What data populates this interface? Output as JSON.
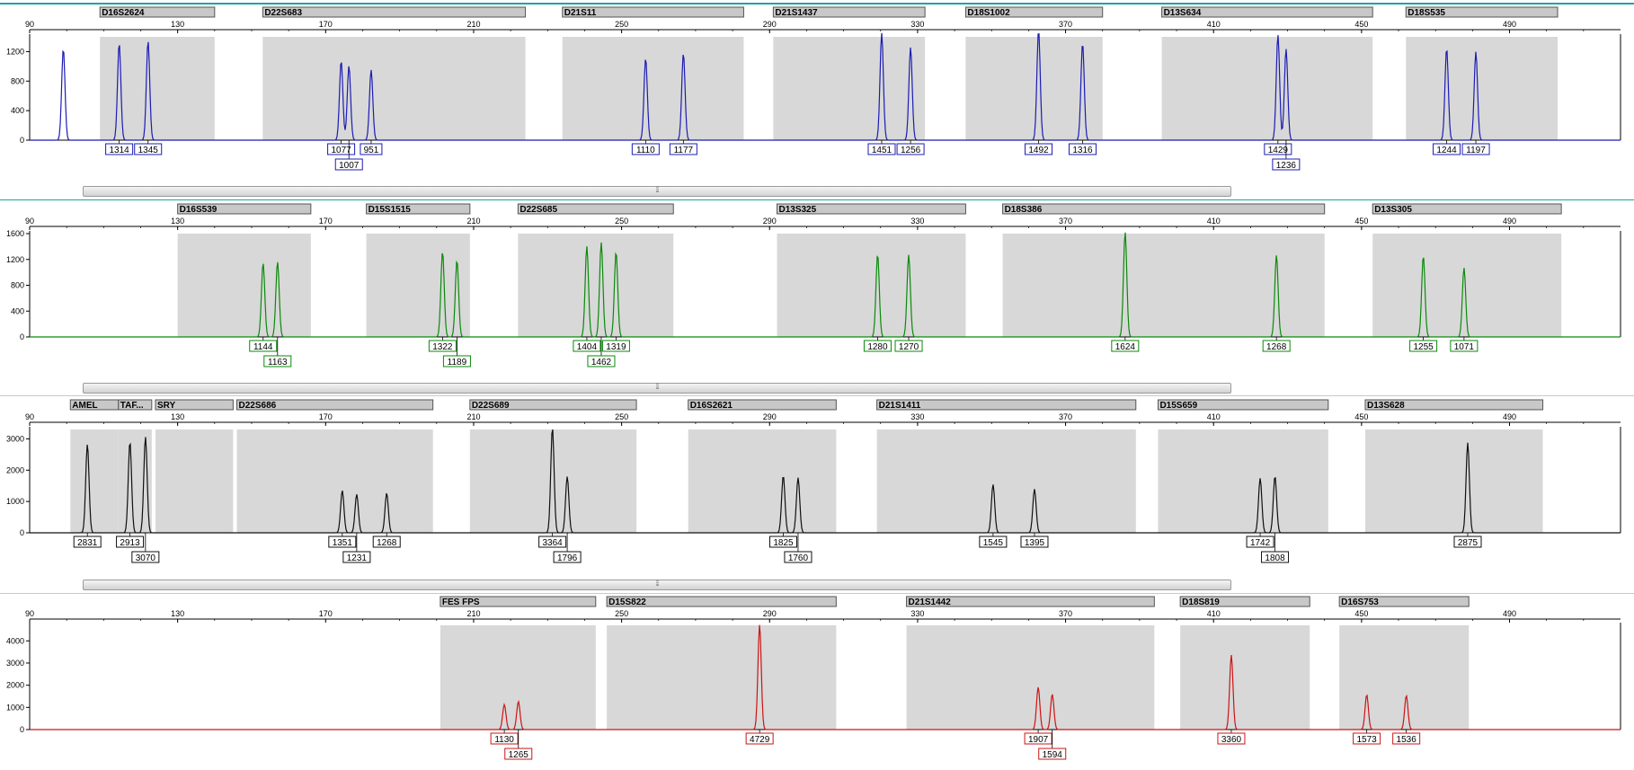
{
  "colors": {
    "blue": "#1c1cb4",
    "green": "#0a8a0a",
    "black": "#101010",
    "red": "#cc1414",
    "bin_fill": "#d8d8d8",
    "marker_fill": "#c8c8c8",
    "separator": "#19a3a8"
  },
  "scroll_grip_icon": "grip-icon",
  "scroll_grip_glyph": "⦙⦙⦙",
  "chart_data": [
    {
      "type": "line",
      "panel": "blue",
      "x_ticks": [
        "90",
        "130",
        "170",
        "210",
        "250",
        "290",
        "330",
        "370",
        "410",
        "450",
        "490"
      ],
      "xlim": [
        90,
        520
      ],
      "y_ticks": [
        "0",
        "400",
        "800",
        "1200"
      ],
      "ylim": [
        0,
        1400
      ],
      "markers": [
        {
          "name": "D16S2624",
          "start": 109,
          "end": 140
        },
        {
          "name": "D22S683",
          "start": 153,
          "end": 224
        },
        {
          "name": "D21S11",
          "start": 234,
          "end": 283
        },
        {
          "name": "D21S1437",
          "start": 291,
          "end": 332
        },
        {
          "name": "D18S1002",
          "start": 343,
          "end": 380
        },
        {
          "name": "D13S634",
          "start": 396,
          "end": 453
        },
        {
          "name": "D18S535",
          "start": 462,
          "end": 503
        }
      ],
      "peaks": [
        {
          "x": 99.1,
          "h": 1240
        },
        {
          "x": 114.2,
          "h": 1314,
          "label": "1314"
        },
        {
          "x": 122.0,
          "h": 1345,
          "label": "1345"
        },
        {
          "x": 174.2,
          "h": 1077,
          "label": "1077"
        },
        {
          "x": 176.3,
          "h": 1007,
          "label": "1007"
        },
        {
          "x": 182.3,
          "h": 951,
          "label": "951"
        },
        {
          "x": 256.5,
          "h": 1110,
          "label": "1110"
        },
        {
          "x": 266.7,
          "h": 1177,
          "label": "1177"
        },
        {
          "x": 320.3,
          "h": 1451,
          "label": "1451"
        },
        {
          "x": 328.1,
          "h": 1256,
          "label": "1256"
        },
        {
          "x": 362.7,
          "h": 1492,
          "label": "1492"
        },
        {
          "x": 374.6,
          "h": 1316,
          "label": "1316"
        },
        {
          "x": 427.4,
          "h": 1429,
          "label": "1429"
        },
        {
          "x": 429.6,
          "h": 1236,
          "label": "1236"
        },
        {
          "x": 473.0,
          "h": 1244,
          "label": "1244"
        },
        {
          "x": 480.9,
          "h": 1197,
          "label": "1197"
        }
      ]
    },
    {
      "type": "line",
      "panel": "green",
      "x_ticks": [
        "90",
        "130",
        "170",
        "210",
        "250",
        "290",
        "330",
        "370",
        "410",
        "450",
        "490"
      ],
      "xlim": [
        90,
        520
      ],
      "y_ticks": [
        "0",
        "400",
        "800",
        "1200",
        "1600"
      ],
      "ylim": [
        0,
        1600
      ],
      "markers": [
        {
          "name": "D16S539",
          "start": 130,
          "end": 166
        },
        {
          "name": "D15S1515",
          "start": 181,
          "end": 209
        },
        {
          "name": "D22S685",
          "start": 222,
          "end": 264
        },
        {
          "name": "D13S325",
          "start": 292,
          "end": 343
        },
        {
          "name": "D18S386",
          "start": 353,
          "end": 440
        },
        {
          "name": "D13S305",
          "start": 453,
          "end": 504
        }
      ],
      "peaks": [
        {
          "x": 153.1,
          "h": 1144,
          "label": "1144"
        },
        {
          "x": 157.0,
          "h": 1163,
          "label": "1163"
        },
        {
          "x": 201.6,
          "h": 1322,
          "label": "1322"
        },
        {
          "x": 205.5,
          "h": 1189,
          "label": "1189"
        },
        {
          "x": 240.6,
          "h": 1404,
          "label": "1404"
        },
        {
          "x": 244.5,
          "h": 1462,
          "label": "1462"
        },
        {
          "x": 248.5,
          "h": 1319,
          "label": "1319"
        },
        {
          "x": 319.2,
          "h": 1280,
          "label": "1280"
        },
        {
          "x": 327.6,
          "h": 1270,
          "label": "1270"
        },
        {
          "x": 386.1,
          "h": 1624,
          "label": "1624"
        },
        {
          "x": 427.0,
          "h": 1268,
          "label": "1268"
        },
        {
          "x": 466.7,
          "h": 1255,
          "label": "1255"
        },
        {
          "x": 477.7,
          "h": 1071,
          "label": "1071"
        }
      ]
    },
    {
      "type": "line",
      "panel": "black",
      "x_ticks": [
        "90",
        "130",
        "170",
        "210",
        "250",
        "290",
        "330",
        "370",
        "410",
        "450",
        "490"
      ],
      "xlim": [
        90,
        520
      ],
      "y_ticks": [
        "0",
        "1000",
        "2000",
        "3000"
      ],
      "ylim": [
        0,
        3300
      ],
      "markers": [
        {
          "name": "AMEL",
          "start": 101,
          "end": 114
        },
        {
          "name": "TAF...",
          "start": 114,
          "end": 123
        },
        {
          "name": "SRY",
          "start": 124,
          "end": 145
        },
        {
          "name": "D22S686",
          "start": 146,
          "end": 199
        },
        {
          "name": "D22S689",
          "start": 209,
          "end": 254
        },
        {
          "name": "D16S2621",
          "start": 268,
          "end": 308
        },
        {
          "name": "D21S1411",
          "start": 319,
          "end": 389
        },
        {
          "name": "D15S659",
          "start": 395,
          "end": 441
        },
        {
          "name": "D13S628",
          "start": 451,
          "end": 499
        }
      ],
      "peaks": [
        {
          "x": 105.6,
          "h": 2831,
          "label": "2831"
        },
        {
          "x": 117.1,
          "h": 2913,
          "label": "2913"
        },
        {
          "x": 121.3,
          "h": 3070,
          "label": "3070"
        },
        {
          "x": 174.5,
          "h": 1351,
          "label": "1351"
        },
        {
          "x": 178.4,
          "h": 1231,
          "label": "1231"
        },
        {
          "x": 186.5,
          "h": 1268,
          "label": "1268"
        },
        {
          "x": 231.3,
          "h": 3364,
          "label": "3364"
        },
        {
          "x": 235.3,
          "h": 1796,
          "label": "1796"
        },
        {
          "x": 293.7,
          "h": 1825,
          "label": "1825"
        },
        {
          "x": 297.7,
          "h": 1760,
          "label": "1760"
        },
        {
          "x": 350.4,
          "h": 1545,
          "label": "1545"
        },
        {
          "x": 361.6,
          "h": 1395,
          "label": "1395"
        },
        {
          "x": 422.6,
          "h": 1742,
          "label": "1742"
        },
        {
          "x": 426.6,
          "h": 1808,
          "label": "1808"
        },
        {
          "x": 478.7,
          "h": 2875,
          "label": "2875"
        }
      ]
    },
    {
      "type": "line",
      "panel": "red",
      "x_ticks": [
        "90",
        "130",
        "170",
        "210",
        "250",
        "290",
        "330",
        "370",
        "410",
        "450",
        "490"
      ],
      "xlim": [
        90,
        520
      ],
      "y_ticks": [
        "0",
        "1000",
        "2000",
        "3000",
        "4000"
      ],
      "ylim": [
        0,
        4700
      ],
      "markers": [
        {
          "name": "FES FPS",
          "start": 201,
          "end": 243
        },
        {
          "name": "D15S822",
          "start": 246,
          "end": 308
        },
        {
          "name": "D21S1442",
          "start": 327,
          "end": 394
        },
        {
          "name": "D18S819",
          "start": 401,
          "end": 436
        },
        {
          "name": "D16S753",
          "start": 444,
          "end": 479
        }
      ],
      "peaks": [
        {
          "x": 218.3,
          "h": 1130,
          "label": "1130"
        },
        {
          "x": 222.1,
          "h": 1265,
          "label": "1265"
        },
        {
          "x": 287.3,
          "h": 4729,
          "label": "4729"
        },
        {
          "x": 362.6,
          "h": 1907,
          "label": "1907"
        },
        {
          "x": 366.4,
          "h": 1594,
          "label": "1594"
        },
        {
          "x": 414.8,
          "h": 3360,
          "label": "3360"
        },
        {
          "x": 451.4,
          "h": 1573,
          "label": "1573"
        },
        {
          "x": 462.1,
          "h": 1536,
          "label": "1536"
        }
      ]
    }
  ]
}
